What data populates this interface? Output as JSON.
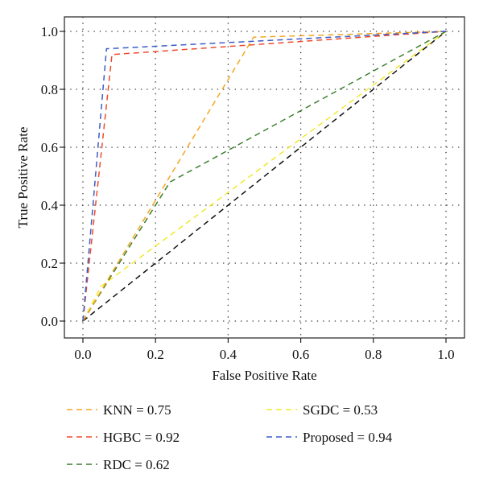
{
  "chart_data": {
    "type": "line",
    "title": "",
    "xlabel": "False Positive Rate",
    "ylabel": "True Positive Rate",
    "xlim": [
      0.0,
      1.0
    ],
    "ylim": [
      0.0,
      1.0
    ],
    "xticks": [
      "0.0",
      "0.2",
      "0.4",
      "0.6",
      "0.8",
      "1.0"
    ],
    "yticks": [
      "0.0",
      "0.2",
      "0.4",
      "0.6",
      "0.8",
      "1.0"
    ],
    "grid": true,
    "grid_style": "dotted",
    "legend_position": "bottom",
    "series": [
      {
        "name": "KNN = 0.75",
        "color": "#f5a623",
        "dashed": true,
        "x": [
          0.0,
          0.47,
          1.0
        ],
        "y": [
          0.0,
          0.98,
          1.0
        ]
      },
      {
        "name": "HGBC = 0.92",
        "color": "#ee4b2b",
        "dashed": true,
        "x": [
          0.0,
          0.08,
          1.0
        ],
        "y": [
          0.0,
          0.92,
          1.0
        ]
      },
      {
        "name": "RDC = 0.62",
        "color": "#3a7d2c",
        "dashed": true,
        "x": [
          0.0,
          0.24,
          1.0
        ],
        "y": [
          0.0,
          0.48,
          1.0
        ]
      },
      {
        "name": "SGDC = 0.53",
        "color": "#f2e82e",
        "dashed": true,
        "x": [
          0.0,
          0.05,
          1.0
        ],
        "y": [
          0.0,
          0.12,
          1.0
        ]
      },
      {
        "name": "Proposed = 0.94",
        "color": "#3c5cc7",
        "dashed": true,
        "x": [
          0.0,
          0.065,
          1.0
        ],
        "y": [
          0.0,
          0.94,
          1.0
        ]
      },
      {
        "name": "",
        "color": "#111111",
        "dashed": true,
        "x": [
          0.0,
          1.0
        ],
        "y": [
          0.0,
          1.0
        ]
      }
    ]
  }
}
